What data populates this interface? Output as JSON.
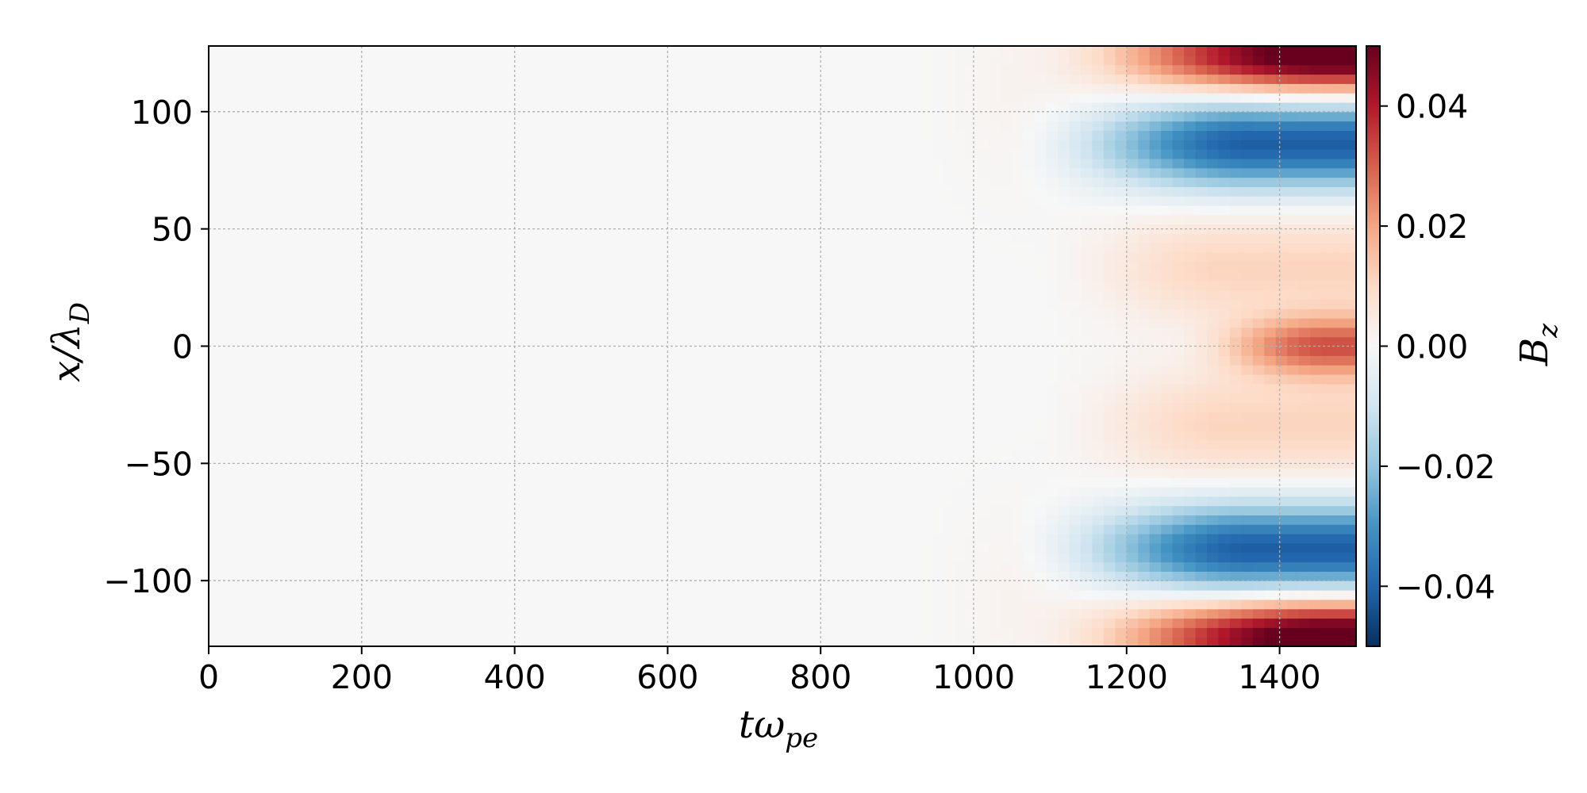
{
  "chart_data": {
    "type": "heatmap",
    "title": "",
    "xlabel": "tω",
    "xlabel_sub": "pe",
    "ylabel": "x/λ",
    "ylabel_sub": "D",
    "xlim": [
      0,
      1500
    ],
    "ylim": [
      -128,
      128
    ],
    "xticks": [
      0,
      200,
      400,
      600,
      800,
      1000,
      1200,
      1400
    ],
    "xtick_labels": [
      "0",
      "200",
      "400",
      "600",
      "800",
      "1000",
      "1200",
      "1400"
    ],
    "yticks": [
      100,
      50,
      0,
      -50,
      -100
    ],
    "ytick_labels": [
      "100",
      "50",
      "0",
      "−50",
      "−100"
    ],
    "grid": true,
    "colorbar": {
      "label": "B",
      "label_sub": "z",
      "range": [
        -0.05,
        0.05
      ],
      "ticks": [
        0.04,
        0.02,
        0.0,
        -0.02,
        -0.04
      ],
      "tick_labels": [
        "0.04",
        "0.02",
        "0.00",
        "−0.02",
        "−0.04"
      ],
      "colormap": "RdBu_r",
      "color_stops": [
        "#053061",
        "#2166ac",
        "#4393c3",
        "#92c5de",
        "#d1e5f0",
        "#f7f7f7",
        "#fddbc7",
        "#f4a582",
        "#d6604d",
        "#b2182b",
        "#67001f"
      ]
    },
    "features": [
      {
        "kind": "positive",
        "x_start": 1100,
        "x_end": 1500,
        "y_center": 120,
        "peak": 0.05
      },
      {
        "kind": "negative",
        "x_start": 1050,
        "x_end": 1500,
        "y_center": 88,
        "peak": -0.045
      },
      {
        "kind": "positive",
        "x_start": 1100,
        "x_end": 1500,
        "y_center": 35,
        "peak": 0.012
      },
      {
        "kind": "positive",
        "x_start": 1250,
        "x_end": 1500,
        "y_center": 0,
        "peak": 0.03
      },
      {
        "kind": "positive",
        "x_start": 1100,
        "x_end": 1500,
        "y_center": -35,
        "peak": 0.012
      },
      {
        "kind": "negative",
        "x_start": 1050,
        "x_end": 1500,
        "y_center": -88,
        "peak": -0.045
      },
      {
        "kind": "positive",
        "x_start": 1100,
        "x_end": 1500,
        "y_center": -120,
        "peak": 0.05
      }
    ]
  }
}
